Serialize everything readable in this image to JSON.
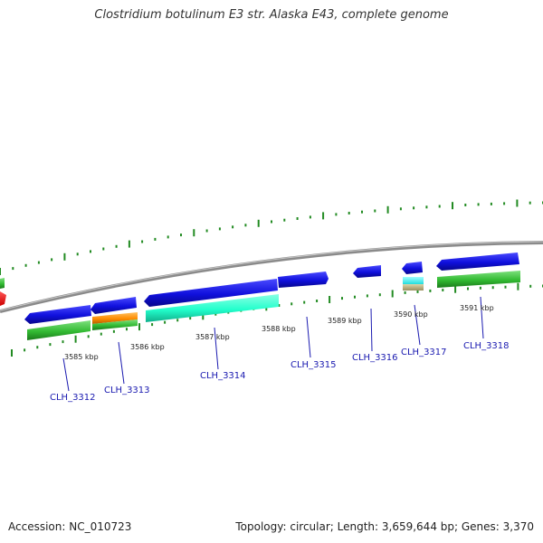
{
  "title": "Clostridium botulinum E3 str. Alaska E43, complete genome",
  "footer": {
    "accession": "Accession: NC_010723",
    "summary": "Topology: circular; Length: 3,659,644 bp; Genes: 3,370"
  },
  "kbp_labels": [
    "3585 kbp",
    "3586 kbp",
    "3587 kbp",
    "3588 kbp",
    "3589 kbp",
    "3590 kbp",
    "3591 kbp"
  ],
  "gene_labels": [
    "CLH_3312",
    "CLH_3313",
    "CLH_3314",
    "CLH_3315",
    "CLH_3316",
    "CLH_3317",
    "CLH_3318"
  ],
  "colors": {
    "forward_cds": "#1010dd",
    "rna_green": "#33bb33",
    "orange": "#ff8c00",
    "cyan": "#22ffcc",
    "light_cyan": "#33ffff",
    "tan": "#bdb383",
    "red": "#ff0000",
    "backbone": "#8a8a8a",
    "tick": "#228b22",
    "label_blue": "#1a1ab0"
  }
}
